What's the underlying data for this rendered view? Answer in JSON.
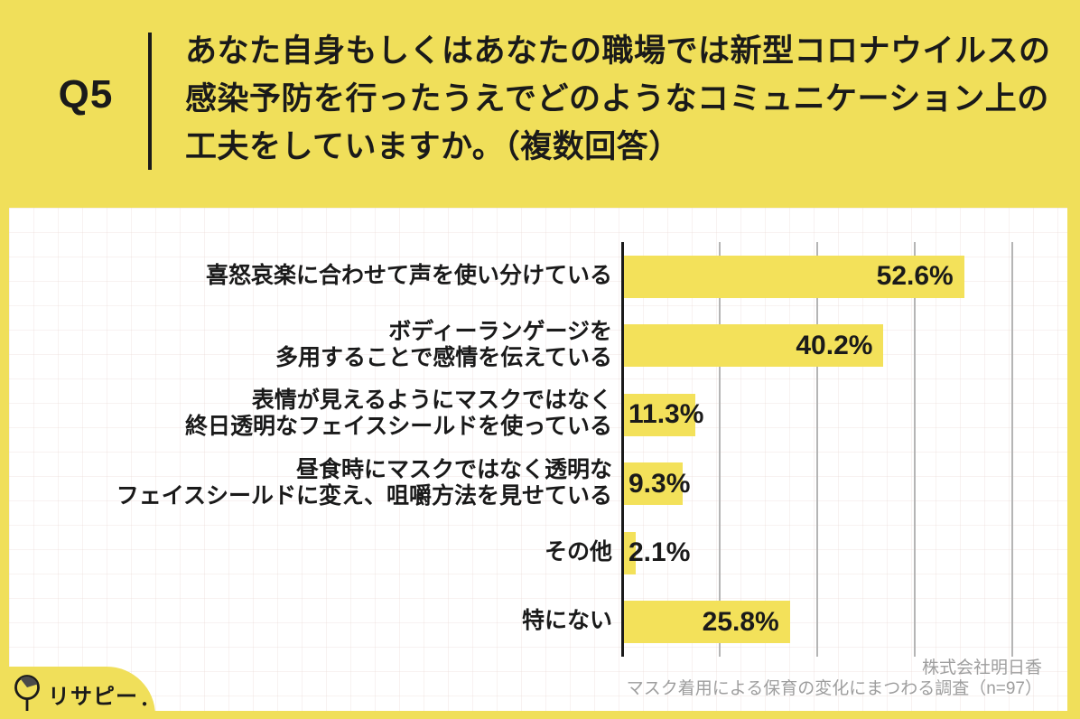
{
  "header": {
    "question_number": "Q5",
    "question_lines": [
      "あなた自身もしくはあなたの職場では新型コロナウイルスの",
      "感染予防を行ったうえでどのようなコミュニケーション上の",
      "工夫をしていますか。（複数回答）"
    ]
  },
  "chart_data": {
    "type": "bar",
    "orientation": "horizontal",
    "title": "",
    "xlabel": "",
    "ylabel": "",
    "xlim": [
      0,
      60
    ],
    "gridline_interval_pct": 15,
    "grid": true,
    "categories": [
      "喜怒哀楽に合わせて声を使い分けている",
      "ボディーランゲージを多用することで感情を伝えている",
      "表情が見えるようにマスクではなく終日透明なフェイスシールドを使っている",
      "昼食時にマスクではなく透明なフェイスシールドに変え、咀嚼方法を見せている",
      "その他",
      "特にない"
    ],
    "values": [
      52.6,
      40.2,
      11.3,
      9.3,
      2.1,
      25.8
    ],
    "rows": [
      {
        "label_lines": [
          "喜怒哀楽に合わせて声を使い分けている"
        ],
        "value": 52.6,
        "value_label": "52.6%",
        "label_inside": true
      },
      {
        "label_lines": [
          "ボディーランゲージを",
          "多用することで感情を伝えている"
        ],
        "value": 40.2,
        "value_label": "40.2%",
        "label_inside": true
      },
      {
        "label_lines": [
          "表情が見えるようにマスクではなく",
          "終日透明なフェイスシールドを使っている"
        ],
        "value": 11.3,
        "value_label": "11.3%",
        "label_inside": false
      },
      {
        "label_lines": [
          "昼食時にマスクではなく透明な",
          "フェイスシールドに変え、咀嚼方法を見せている"
        ],
        "value": 9.3,
        "value_label": "9.3%",
        "label_inside": false
      },
      {
        "label_lines": [
          "その他"
        ],
        "value": 2.1,
        "value_label": "2.1%",
        "label_inside": false
      },
      {
        "label_lines": [
          "特にない"
        ],
        "value": 25.8,
        "value_label": "25.8%",
        "label_inside": true
      }
    ]
  },
  "footer": {
    "logo_text": "リサピー",
    "source_company": "株式会社明日香",
    "source_survey": "マスク着用による保育の変化にまつわる調査（n=97）"
  },
  "colors": {
    "background_yellow": "#F0DF5A",
    "bar_yellow": "#F3E15A",
    "text_black": "#1a1a1a",
    "gridline_gray": "#b5b5b5",
    "axis_black": "#1a1a1a",
    "footer_gray": "#9e9e9e"
  }
}
